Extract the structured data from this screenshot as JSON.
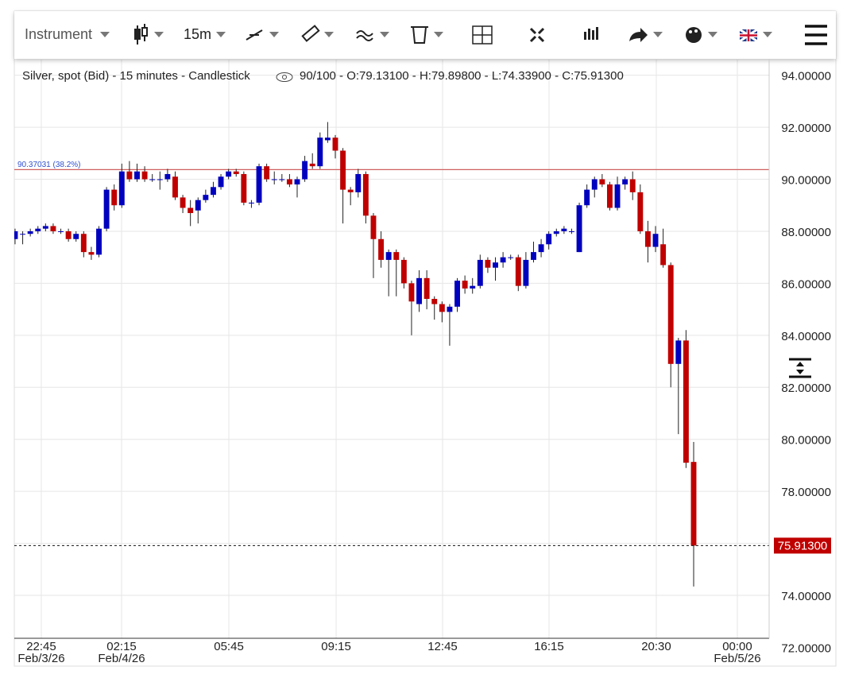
{
  "toolbar": {
    "instrument": "Instrument",
    "interval": "15m"
  },
  "chart_data": {
    "type": "candlestick",
    "title": "Silver, spot (Bid) - 15 minutes - Candlestick",
    "subtitle": "90/100 - O:79.13100 - H:79.89800 - L:74.33900 - C:75.91300",
    "up_color": "#0000bf",
    "down_color": "#c00000",
    "grid": true,
    "open": [
      87.7,
      87.9,
      87.9,
      88.0,
      88.1,
      88.2,
      88.0,
      88.0,
      87.7,
      87.9,
      87.2,
      87.1,
      88.1,
      89.6,
      89.0,
      90.3,
      90.0,
      90.3,
      90.0,
      90.0,
      90.0,
      90.1,
      89.3,
      88.9,
      88.8,
      89.2,
      89.4,
      89.7,
      90.1,
      90.3,
      90.2,
      89.1,
      89.1,
      90.5,
      90.0,
      90.0,
      90.0,
      89.8,
      90.0,
      90.6,
      90.5,
      91.5,
      91.6,
      91.1,
      89.6,
      89.5,
      90.2,
      88.6,
      87.7,
      86.9,
      87.2,
      86.9,
      86.0,
      85.2,
      86.2,
      85.4,
      85.2,
      84.9,
      85.1,
      86.1,
      85.8,
      85.9,
      86.9,
      86.6,
      86.8,
      87.0,
      87.0,
      85.9,
      86.9,
      87.2,
      87.5,
      87.9,
      88.0,
      88.0,
      87.2,
      89.0,
      89.6,
      90.0,
      89.8,
      88.9,
      89.8,
      90.0,
      89.5,
      88.0,
      87.4,
      87.5,
      86.7,
      82.9,
      83.8,
      79.131
    ],
    "close": [
      88.0,
      87.9,
      88.0,
      88.1,
      88.2,
      88.0,
      88.0,
      87.7,
      87.9,
      87.2,
      87.1,
      88.1,
      89.6,
      89.0,
      90.3,
      90.0,
      90.3,
      90.0,
      90.0,
      90.0,
      90.2,
      89.3,
      88.9,
      88.7,
      89.2,
      89.4,
      89.7,
      90.1,
      90.3,
      90.2,
      89.1,
      89.1,
      90.5,
      90.0,
      90.0,
      90.0,
      89.8,
      90.0,
      90.7,
      90.5,
      91.6,
      91.6,
      91.1,
      89.6,
      89.5,
      90.2,
      88.6,
      87.7,
      86.9,
      87.2,
      86.9,
      86.0,
      85.3,
      86.2,
      85.4,
      85.2,
      84.9,
      85.1,
      86.1,
      85.8,
      85.9,
      86.9,
      86.6,
      86.8,
      87.0,
      87.0,
      85.9,
      86.9,
      87.2,
      87.5,
      87.9,
      88.0,
      88.1,
      88.0,
      89.0,
      89.6,
      90.0,
      89.8,
      88.9,
      89.8,
      90.0,
      89.5,
      88.0,
      87.4,
      87.9,
      86.7,
      82.9,
      83.8,
      79.1,
      75.913
    ],
    "high": [
      88.1,
      88.0,
      88.1,
      88.2,
      88.3,
      88.3,
      88.1,
      88.1,
      88.0,
      88.0,
      87.4,
      88.2,
      89.7,
      89.8,
      90.6,
      90.7,
      90.6,
      90.5,
      90.2,
      90.3,
      90.4,
      90.3,
      89.4,
      89.2,
      89.3,
      89.6,
      89.9,
      90.2,
      90.4,
      90.4,
      90.3,
      89.2,
      90.6,
      90.6,
      90.3,
      90.2,
      90.2,
      90.1,
      90.9,
      91.0,
      91.8,
      92.2,
      91.7,
      91.2,
      89.7,
      90.4,
      90.3,
      88.7,
      88.0,
      87.3,
      87.3,
      87.0,
      86.1,
      86.5,
      86.5,
      85.5,
      85.3,
      85.2,
      86.2,
      86.3,
      86.2,
      87.1,
      87.0,
      87.0,
      87.2,
      87.1,
      87.1,
      87.2,
      87.6,
      87.7,
      88.0,
      88.1,
      88.2,
      88.1,
      89.1,
      89.8,
      90.1,
      90.2,
      89.9,
      90.1,
      90.1,
      90.3,
      89.8,
      88.4,
      88.2,
      88.1,
      86.8,
      83.9,
      84.2,
      79.898
    ],
    "low": [
      87.5,
      87.5,
      87.8,
      87.9,
      88.0,
      87.9,
      87.9,
      87.6,
      87.6,
      87.0,
      86.9,
      87.0,
      88.0,
      88.8,
      88.9,
      89.9,
      89.9,
      89.9,
      89.9,
      89.6,
      89.9,
      89.2,
      88.7,
      88.2,
      88.3,
      89.1,
      89.3,
      89.6,
      90.0,
      90.1,
      89.0,
      88.9,
      89.0,
      89.9,
      89.8,
      89.9,
      89.7,
      89.3,
      89.9,
      90.4,
      90.4,
      91.4,
      90.8,
      88.3,
      89.0,
      89.3,
      88.3,
      86.2,
      86.6,
      85.5,
      85.5,
      85.8,
      84.0,
      84.9,
      85.0,
      84.6,
      84.5,
      83.6,
      84.9,
      85.6,
      85.6,
      85.8,
      86.4,
      86.1,
      86.6,
      86.9,
      85.7,
      85.8,
      86.8,
      87.0,
      87.3,
      87.8,
      87.9,
      87.9,
      87.2,
      88.9,
      89.3,
      89.7,
      88.8,
      88.8,
      89.6,
      89.2,
      87.9,
      86.8,
      87.2,
      86.6,
      82.0,
      80.2,
      78.9,
      74.339
    ],
    "level": {
      "value": 90.37031,
      "label": "90.37031 (38.2%)",
      "color": "#d06060"
    },
    "last_price": {
      "value": 75.913,
      "label": "75.91300"
    },
    "xlim": [
      -0.1,
      98.9
    ],
    "xticks": [
      {
        "value": 3.44,
        "label": "22:45"
      },
      {
        "value": 13.97,
        "label": "02:15"
      },
      {
        "value": 28.04,
        "label": "05:45"
      },
      {
        "value": 42.11,
        "label": "09:15"
      },
      {
        "value": 56.07,
        "label": "12:45"
      },
      {
        "value": 70.03,
        "label": "16:15"
      },
      {
        "value": 84.1,
        "label": "20:30"
      },
      {
        "value": 94.73,
        "label": "00:00"
      }
    ],
    "date_labels": [
      {
        "value": 3.44,
        "label": "Feb/3/26"
      },
      {
        "value": 13.97,
        "label": "Feb/4/26"
      },
      {
        "value": 94.73,
        "label": "Feb/5/26"
      }
    ],
    "ylim": [
      72.35,
      94.6
    ],
    "yticks": [
      {
        "value": 72,
        "label": "72.00000"
      },
      {
        "value": 74,
        "label": "74.00000"
      },
      {
        "value": 76,
        "label": "76.00000"
      },
      {
        "value": 78,
        "label": "78.00000"
      },
      {
        "value": 80,
        "label": "80.00000"
      },
      {
        "value": 82,
        "label": "82.00000"
      },
      {
        "value": 84,
        "label": "84.00000"
      },
      {
        "value": 86,
        "label": "86.00000"
      },
      {
        "value": 88,
        "label": "88.00000"
      },
      {
        "value": 90,
        "label": "90.00000"
      },
      {
        "value": 92,
        "label": "92.00000"
      },
      {
        "value": 94,
        "label": "94.00000"
      }
    ]
  }
}
